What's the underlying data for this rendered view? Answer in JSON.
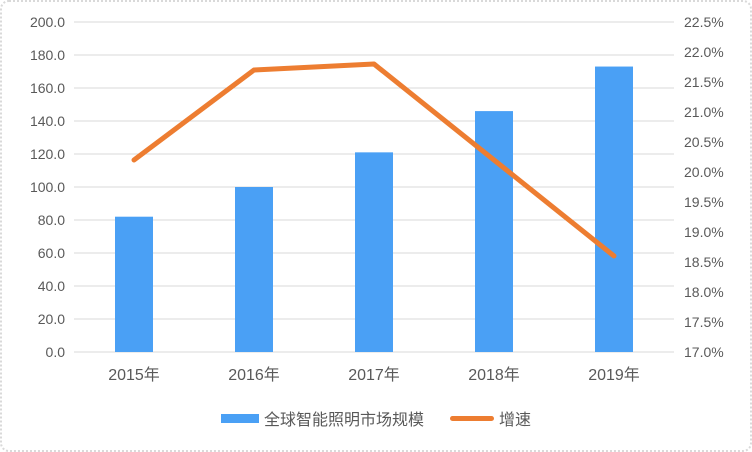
{
  "chart_data": {
    "type": "bar",
    "title": "",
    "xlabel": "",
    "ylabel": "",
    "categories": [
      "2015年",
      "2016年",
      "2017年",
      "2018年",
      "2019年"
    ],
    "series": [
      {
        "name": "全球智能照明市场规模",
        "type": "bar",
        "axis": "left",
        "color": "#4AA0F5",
        "values": [
          82,
          100,
          121,
          146,
          173
        ]
      },
      {
        "name": "增速",
        "type": "line",
        "axis": "right",
        "color": "#ED7D31",
        "unit": "%",
        "values": [
          20.2,
          21.7,
          21.8,
          20.2,
          18.6
        ]
      }
    ],
    "axes": {
      "left": {
        "min": 0,
        "max": 200,
        "step": 20,
        "labels": [
          "200.0",
          "180.0",
          "160.0",
          "140.0",
          "120.0",
          "100.0",
          "80.0",
          "60.0",
          "40.0",
          "20.0",
          "0.0"
        ]
      },
      "right": {
        "min": 17.0,
        "max": 22.5,
        "step": 0.5,
        "labels": [
          "22.5%",
          "22.0%",
          "21.5%",
          "21.0%",
          "20.5%",
          "20.0%",
          "19.5%",
          "19.0%",
          "18.5%",
          "18.0%",
          "17.5%",
          "17.0%"
        ]
      }
    },
    "grid": true,
    "legend_position": "bottom",
    "colors": {
      "grid": "#D9D9D9",
      "text": "#595959",
      "background": "#FFFFFF",
      "border": "#D9D9D9"
    }
  }
}
